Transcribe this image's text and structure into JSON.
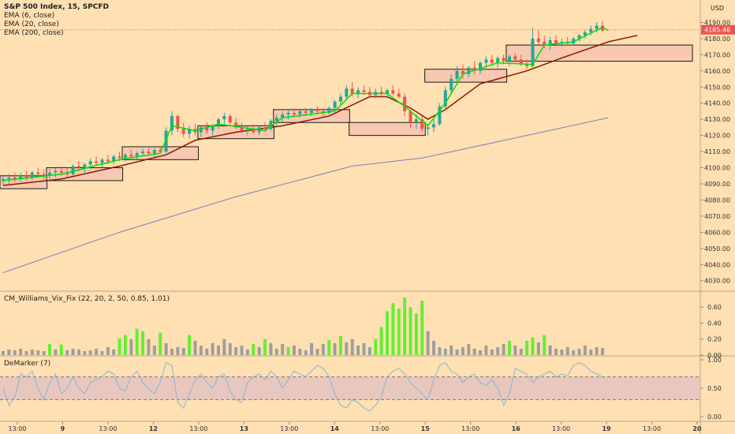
{
  "window": {
    "symbol_title": "S&P 500 Index, 15, SPCFD",
    "currency": "USD"
  },
  "indicators": {
    "ema_fast": "EMA (6, close)",
    "ema_mid": "EMA (20, close)",
    "ema_slow": "EMA (200, close)",
    "vix_fix": "CM_Williams_Vix_Fix (22, 20, 2, 50, 0.85, 1.01)",
    "demarker": "DeMarker (7)"
  },
  "colors": {
    "background": "#ffe0b2",
    "up": "#26a69a",
    "down": "#ef5350",
    "ema6": "#00e000",
    "ema20": "#8b1a00",
    "ema200": "#7e7ebf",
    "box_fill": "#f8c8b0",
    "vix_gray": "#9e9e9e",
    "vix_green": "#66ee33",
    "demarker_line": "#85b5d9",
    "demarker_band": "#d8b7c7"
  },
  "chart_data": {
    "type": "candlestick",
    "title": "S&P 500 Index, 15, SPCFD",
    "last_price": "4185.46",
    "price_axis": {
      "ticks": [
        "4190.00",
        "4180.00",
        "4170.00",
        "4160.00",
        "4150.00",
        "4140.00",
        "4130.00",
        "4120.00",
        "4110.00",
        "4100.00",
        "4090.00",
        "4080.00",
        "4070.00",
        "4060.00",
        "4050.00",
        "4040.00",
        "4030.00"
      ],
      "ylim": [
        4024,
        4200
      ]
    },
    "time_axis": {
      "ticks": [
        "13:00",
        "9",
        "13:00",
        "12",
        "13:00",
        "13",
        "13:00",
        "14",
        "13:00",
        "15",
        "13:00",
        "16",
        "13:00",
        "19",
        "13:00",
        "20"
      ]
    },
    "candles": [
      {
        "o": 4092,
        "h": 4095,
        "l": 4089,
        "c": 4093
      },
      {
        "o": 4093,
        "h": 4096,
        "l": 4090,
        "c": 4094
      },
      {
        "o": 4094,
        "h": 4097,
        "l": 4091,
        "c": 4093
      },
      {
        "o": 4093,
        "h": 4097,
        "l": 4091,
        "c": 4095
      },
      {
        "o": 4095,
        "h": 4098,
        "l": 4092,
        "c": 4094
      },
      {
        "o": 4094,
        "h": 4098,
        "l": 4092,
        "c": 4097
      },
      {
        "o": 4097,
        "h": 4100,
        "l": 4094,
        "c": 4096
      },
      {
        "o": 4096,
        "h": 4099,
        "l": 4093,
        "c": 4095
      },
      {
        "o": 4095,
        "h": 4099,
        "l": 4093,
        "c": 4097
      },
      {
        "o": 4097,
        "h": 4100,
        "l": 4094,
        "c": 4098
      },
      {
        "o": 4098,
        "h": 4101,
        "l": 4095,
        "c": 4097
      },
      {
        "o": 4097,
        "h": 4100,
        "l": 4094,
        "c": 4096
      },
      {
        "o": 4096,
        "h": 4102,
        "l": 4095,
        "c": 4101
      },
      {
        "o": 4101,
        "h": 4104,
        "l": 4098,
        "c": 4100
      },
      {
        "o": 4100,
        "h": 4103,
        "l": 4097,
        "c": 4102
      },
      {
        "o": 4102,
        "h": 4106,
        "l": 4099,
        "c": 4104
      },
      {
        "o": 4104,
        "h": 4107,
        "l": 4101,
        "c": 4103
      },
      {
        "o": 4103,
        "h": 4106,
        "l": 4100,
        "c": 4105
      },
      {
        "o": 4105,
        "h": 4108,
        "l": 4102,
        "c": 4104
      },
      {
        "o": 4104,
        "h": 4108,
        "l": 4102,
        "c": 4107
      },
      {
        "o": 4107,
        "h": 4110,
        "l": 4104,
        "c": 4106
      },
      {
        "o": 4106,
        "h": 4109,
        "l": 4104,
        "c": 4108
      },
      {
        "o": 4108,
        "h": 4111,
        "l": 4105,
        "c": 4107
      },
      {
        "o": 4107,
        "h": 4110,
        "l": 4105,
        "c": 4109
      },
      {
        "o": 4109,
        "h": 4112,
        "l": 4107,
        "c": 4110
      },
      {
        "o": 4110,
        "h": 4112,
        "l": 4108,
        "c": 4109
      },
      {
        "o": 4109,
        "h": 4112,
        "l": 4107,
        "c": 4111
      },
      {
        "o": 4111,
        "h": 4113,
        "l": 4109,
        "c": 4110
      },
      {
        "o": 4110,
        "h": 4125,
        "l": 4109,
        "c": 4123
      },
      {
        "o": 4123,
        "h": 4135,
        "l": 4120,
        "c": 4132
      },
      {
        "o": 4132,
        "h": 4133,
        "l": 4122,
        "c": 4124
      },
      {
        "o": 4124,
        "h": 4128,
        "l": 4119,
        "c": 4121
      },
      {
        "o": 4121,
        "h": 4126,
        "l": 4118,
        "c": 4124
      },
      {
        "o": 4124,
        "h": 4127,
        "l": 4120,
        "c": 4122
      },
      {
        "o": 4122,
        "h": 4126,
        "l": 4119,
        "c": 4125
      },
      {
        "o": 4125,
        "h": 4128,
        "l": 4121,
        "c": 4123
      },
      {
        "o": 4123,
        "h": 4127,
        "l": 4120,
        "c": 4126
      },
      {
        "o": 4126,
        "h": 4131,
        "l": 4124,
        "c": 4130
      },
      {
        "o": 4130,
        "h": 4134,
        "l": 4127,
        "c": 4132
      },
      {
        "o": 4132,
        "h": 4133,
        "l": 4126,
        "c": 4128
      },
      {
        "o": 4128,
        "h": 4131,
        "l": 4124,
        "c": 4125
      },
      {
        "o": 4125,
        "h": 4128,
        "l": 4121,
        "c": 4123
      },
      {
        "o": 4123,
        "h": 4126,
        "l": 4120,
        "c": 4124
      },
      {
        "o": 4124,
        "h": 4127,
        "l": 4121,
        "c": 4122
      },
      {
        "o": 4122,
        "h": 4126,
        "l": 4120,
        "c": 4125
      },
      {
        "o": 4125,
        "h": 4128,
        "l": 4122,
        "c": 4124
      },
      {
        "o": 4124,
        "h": 4130,
        "l": 4123,
        "c": 4129
      },
      {
        "o": 4129,
        "h": 4133,
        "l": 4126,
        "c": 4131
      },
      {
        "o": 4131,
        "h": 4135,
        "l": 4128,
        "c": 4133
      },
      {
        "o": 4133,
        "h": 4136,
        "l": 4130,
        "c": 4134
      },
      {
        "o": 4134,
        "h": 4137,
        "l": 4131,
        "c": 4133
      },
      {
        "o": 4133,
        "h": 4136,
        "l": 4131,
        "c": 4135
      },
      {
        "o": 4135,
        "h": 4137,
        "l": 4132,
        "c": 4134
      },
      {
        "o": 4134,
        "h": 4137,
        "l": 4132,
        "c": 4136
      },
      {
        "o": 4136,
        "h": 4138,
        "l": 4133,
        "c": 4135
      },
      {
        "o": 4135,
        "h": 4137,
        "l": 4132,
        "c": 4134
      },
      {
        "o": 4134,
        "h": 4138,
        "l": 4133,
        "c": 4137
      },
      {
        "o": 4137,
        "h": 4142,
        "l": 4135,
        "c": 4141
      },
      {
        "o": 4141,
        "h": 4146,
        "l": 4139,
        "c": 4144
      },
      {
        "o": 4144,
        "h": 4151,
        "l": 4142,
        "c": 4149
      },
      {
        "o": 4149,
        "h": 4153,
        "l": 4144,
        "c": 4146
      },
      {
        "o": 4146,
        "h": 4150,
        "l": 4143,
        "c": 4148
      },
      {
        "o": 4148,
        "h": 4151,
        "l": 4145,
        "c": 4147
      },
      {
        "o": 4147,
        "h": 4150,
        "l": 4144,
        "c": 4145
      },
      {
        "o": 4145,
        "h": 4149,
        "l": 4143,
        "c": 4147
      },
      {
        "o": 4147,
        "h": 4150,
        "l": 4144,
        "c": 4146
      },
      {
        "o": 4146,
        "h": 4149,
        "l": 4143,
        "c": 4148
      },
      {
        "o": 4148,
        "h": 4151,
        "l": 4145,
        "c": 4146
      },
      {
        "o": 4146,
        "h": 4149,
        "l": 4143,
        "c": 4144
      },
      {
        "o": 4144,
        "h": 4146,
        "l": 4132,
        "c": 4135
      },
      {
        "o": 4135,
        "h": 4136,
        "l": 4125,
        "c": 4128
      },
      {
        "o": 4128,
        "h": 4133,
        "l": 4124,
        "c": 4130
      },
      {
        "o": 4130,
        "h": 4132,
        "l": 4122,
        "c": 4124
      },
      {
        "o": 4124,
        "h": 4127,
        "l": 4120,
        "c": 4125
      },
      {
        "o": 4125,
        "h": 4130,
        "l": 4122,
        "c": 4127
      },
      {
        "o": 4127,
        "h": 4140,
        "l": 4126,
        "c": 4138
      },
      {
        "o": 4138,
        "h": 4150,
        "l": 4136,
        "c": 4148
      },
      {
        "o": 4148,
        "h": 4158,
        "l": 4146,
        "c": 4155
      },
      {
        "o": 4155,
        "h": 4163,
        "l": 4152,
        "c": 4160
      },
      {
        "o": 4160,
        "h": 4164,
        "l": 4155,
        "c": 4158
      },
      {
        "o": 4158,
        "h": 4163,
        "l": 4156,
        "c": 4162
      },
      {
        "o": 4162,
        "h": 4166,
        "l": 4158,
        "c": 4160
      },
      {
        "o": 4160,
        "h": 4166,
        "l": 4158,
        "c": 4165
      },
      {
        "o": 4165,
        "h": 4169,
        "l": 4162,
        "c": 4167
      },
      {
        "o": 4167,
        "h": 4170,
        "l": 4163,
        "c": 4165
      },
      {
        "o": 4165,
        "h": 4169,
        "l": 4162,
        "c": 4168
      },
      {
        "o": 4168,
        "h": 4170,
        "l": 4164,
        "c": 4166
      },
      {
        "o": 4166,
        "h": 4170,
        "l": 4163,
        "c": 4169
      },
      {
        "o": 4169,
        "h": 4171,
        "l": 4165,
        "c": 4167
      },
      {
        "o": 4167,
        "h": 4170,
        "l": 4163,
        "c": 4164
      },
      {
        "o": 4164,
        "h": 4167,
        "l": 4161,
        "c": 4163
      },
      {
        "o": 4163,
        "h": 4187,
        "l": 4162,
        "c": 4180
      },
      {
        "o": 4180,
        "h": 4185,
        "l": 4176,
        "c": 4178
      },
      {
        "o": 4178,
        "h": 4182,
        "l": 4174,
        "c": 4176
      },
      {
        "o": 4176,
        "h": 4181,
        "l": 4173,
        "c": 4179
      },
      {
        "o": 4179,
        "h": 4182,
        "l": 4176,
        "c": 4177
      },
      {
        "o": 4177,
        "h": 4180,
        "l": 4175,
        "c": 4178
      },
      {
        "o": 4178,
        "h": 4181,
        "l": 4176,
        "c": 4177
      },
      {
        "o": 4177,
        "h": 4181,
        "l": 4176,
        "c": 4180
      },
      {
        "o": 4180,
        "h": 4183,
        "l": 4178,
        "c": 4182
      },
      {
        "o": 4182,
        "h": 4185,
        "l": 4180,
        "c": 4184
      },
      {
        "o": 4184,
        "h": 4188,
        "l": 4182,
        "c": 4186
      },
      {
        "o": 4186,
        "h": 4190,
        "l": 4184,
        "c": 4188
      },
      {
        "o": 4188,
        "h": 4191,
        "l": 4184,
        "c": 4185
      }
    ],
    "ema6": [
      [
        0,
        4092
      ],
      [
        10,
        4096
      ],
      [
        20,
        4105
      ],
      [
        27,
        4109
      ],
      [
        29,
        4126
      ],
      [
        33,
        4123
      ],
      [
        37,
        4127
      ],
      [
        45,
        4123
      ],
      [
        48,
        4131
      ],
      [
        57,
        4135
      ],
      [
        60,
        4146
      ],
      [
        66,
        4146
      ],
      [
        69,
        4138
      ],
      [
        73,
        4126
      ],
      [
        76,
        4140
      ],
      [
        79,
        4158
      ],
      [
        85,
        4165
      ],
      [
        91,
        4164
      ],
      [
        93,
        4176
      ],
      [
        98,
        4178
      ],
      [
        103,
        4187
      ],
      [
        104,
        4185
      ]
    ],
    "ema20": [
      [
        0,
        4089
      ],
      [
        10,
        4093
      ],
      [
        20,
        4101
      ],
      [
        28,
        4108
      ],
      [
        33,
        4117
      ],
      [
        40,
        4122
      ],
      [
        48,
        4126
      ],
      [
        56,
        4132
      ],
      [
        63,
        4144
      ],
      [
        66,
        4144
      ],
      [
        70,
        4137
      ],
      [
        73,
        4130
      ],
      [
        76,
        4136
      ],
      [
        82,
        4152
      ],
      [
        90,
        4160
      ],
      [
        96,
        4168
      ],
      [
        104,
        4178
      ],
      [
        109,
        4182
      ]
    ],
    "ema200": [
      [
        0,
        4035
      ],
      [
        20,
        4060
      ],
      [
        40,
        4082
      ],
      [
        60,
        4101
      ],
      [
        72,
        4106
      ],
      [
        90,
        4120
      ],
      [
        104,
        4131
      ]
    ],
    "zones": [
      {
        "from": 0,
        "to": 7,
        "top": 4095,
        "bottom": 4087
      },
      {
        "from": 8,
        "to": 20,
        "top": 4100,
        "bottom": 4092
      },
      {
        "from": 21,
        "to": 33,
        "top": 4113,
        "bottom": 4105
      },
      {
        "from": 34,
        "to": 46,
        "top": 4126,
        "bottom": 4118
      },
      {
        "from": 47,
        "to": 59,
        "top": 4136,
        "bottom": 4128
      },
      {
        "from": 60,
        "to": 72,
        "top": 4128,
        "bottom": 4120
      },
      {
        "from": 73,
        "to": 86,
        "top": 4161,
        "bottom": 4153
      },
      {
        "from": 87,
        "to": 99,
        "top": 4176,
        "bottom": 4166
      }
    ],
    "vix_fix": {
      "ticks": [
        "0.60",
        "0.40",
        "0.20",
        "0.00"
      ],
      "ylim": [
        0,
        0.75
      ],
      "values": [
        0.05,
        0.07,
        0.06,
        0.08,
        0.05,
        0.07,
        0.06,
        0.05,
        0.14,
        0.07,
        0.13,
        0.06,
        0.08,
        0.07,
        0.05,
        0.06,
        0.08,
        0.05,
        0.1,
        0.07,
        0.21,
        0.25,
        0.2,
        0.33,
        0.3,
        0.2,
        0.12,
        0.28,
        0.15,
        0.08,
        0.1,
        0.09,
        0.25,
        0.18,
        0.12,
        0.08,
        0.15,
        0.12,
        0.2,
        0.15,
        0.1,
        0.12,
        0.07,
        0.14,
        0.1,
        0.2,
        0.15,
        0.08,
        0.14,
        0.1,
        0.12,
        0.08,
        0.06,
        0.15,
        0.08,
        0.14,
        0.19,
        0.15,
        0.24,
        0.16,
        0.2,
        0.12,
        0.15,
        0.1,
        0.2,
        0.35,
        0.55,
        0.65,
        0.58,
        0.72,
        0.6,
        0.52,
        0.68,
        0.3,
        0.18,
        0.1,
        0.08,
        0.12,
        0.07,
        0.1,
        0.14,
        0.08,
        0.06,
        0.12,
        0.07,
        0.1,
        0.14,
        0.18,
        0.12,
        0.08,
        0.18,
        0.22,
        0.16,
        0.25,
        0.12,
        0.08,
        0.07,
        0.1,
        0.06,
        0.08,
        0.12,
        0.07,
        0.1,
        0.09
      ],
      "highlight": [
        8,
        10,
        20,
        21,
        23,
        24,
        27,
        32,
        43,
        45,
        49,
        56,
        58,
        64,
        65,
        66,
        67,
        68,
        69,
        70,
        71,
        72,
        87,
        90,
        91,
        93
      ]
    },
    "demarker": {
      "ticks": [
        "1.00",
        "0.50",
        "0.00"
      ],
      "ylim": [
        0,
        1
      ],
      "band": [
        0.3,
        0.7
      ],
      "values": [
        0.5,
        0.2,
        0.35,
        0.75,
        0.7,
        0.8,
        0.5,
        0.3,
        0.6,
        0.75,
        0.4,
        0.5,
        0.7,
        0.5,
        0.4,
        0.6,
        0.65,
        0.7,
        0.8,
        0.75,
        0.5,
        0.45,
        0.7,
        0.8,
        0.6,
        0.5,
        0.4,
        0.6,
        0.95,
        0.9,
        0.25,
        0.15,
        0.4,
        0.65,
        0.75,
        0.6,
        0.5,
        0.7,
        0.75,
        0.45,
        0.3,
        0.25,
        0.6,
        0.7,
        0.75,
        0.65,
        0.8,
        0.7,
        0.5,
        0.65,
        0.8,
        0.75,
        0.7,
        0.8,
        0.9,
        0.85,
        0.7,
        0.4,
        0.2,
        0.15,
        0.3,
        0.25,
        0.15,
        0.1,
        0.2,
        0.35,
        0.7,
        0.8,
        0.85,
        0.75,
        0.6,
        0.5,
        0.4,
        0.3,
        0.65,
        0.9,
        0.95,
        0.8,
        0.75,
        0.6,
        0.7,
        0.75,
        0.6,
        0.55,
        0.65,
        0.5,
        0.2,
        0.4,
        0.85,
        0.8,
        0.75,
        0.6,
        0.7,
        0.75,
        0.8,
        0.7,
        0.75,
        0.72,
        0.9,
        0.95,
        0.9,
        0.8,
        0.75,
        0.7
      ]
    }
  }
}
